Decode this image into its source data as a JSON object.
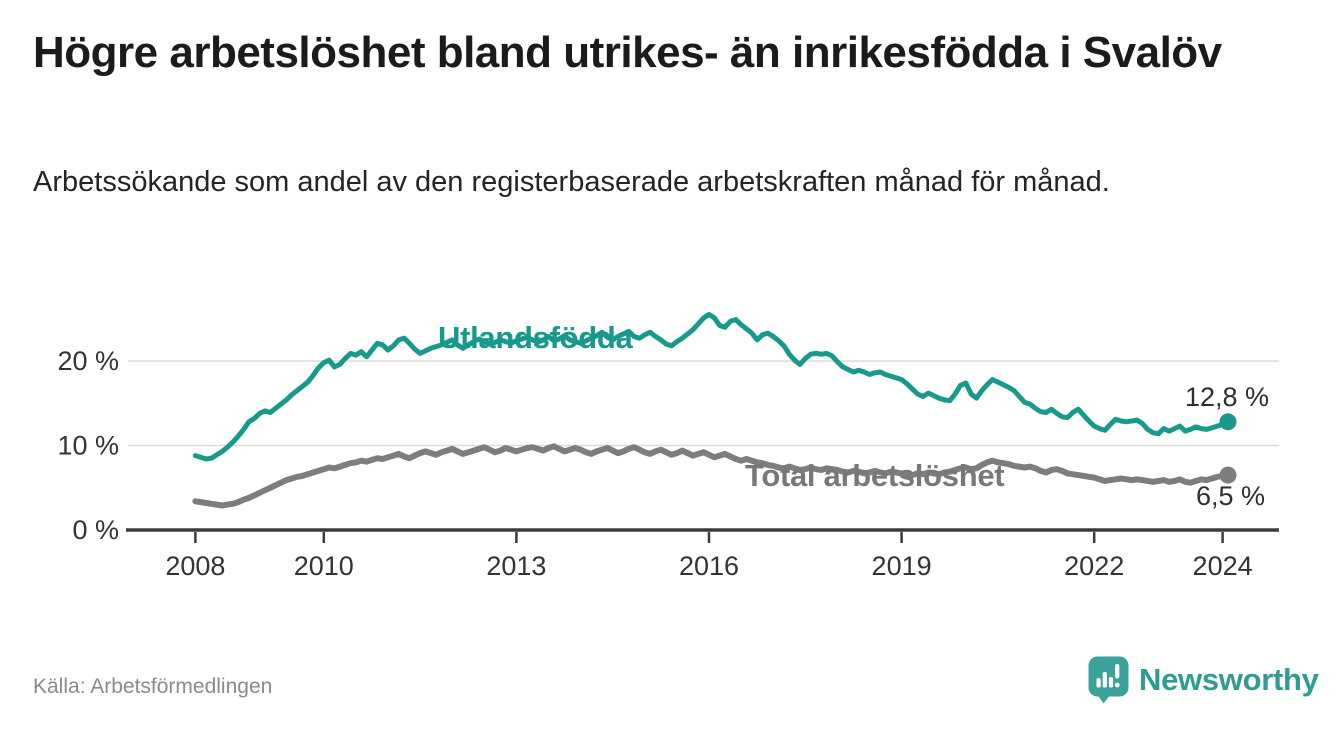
{
  "header": {
    "title": "Högre arbetslöshet bland utrikes- än inrikesfödda i Svalöv",
    "subtitle": "Arbetssökande som andel av den registerbaserade arbetskraften månad för månad."
  },
  "footer": {
    "source": "Källa: Arbetsförmedlingen",
    "brand_name": "Newsworthy",
    "logo_icon": "speech-bubble-bar-chart-icon"
  },
  "colors": {
    "accent_teal": "#17998C",
    "series_gray": "#7D7D7F",
    "title_text": "#1b1b1b",
    "axis_text": "#333333",
    "gridline": "#DCDCDC",
    "axis_line": "#3B3B3B",
    "source_text": "#8A8A8A",
    "logo_teal": "#3AA29A"
  },
  "chart_data": {
    "type": "line",
    "title": "Högre arbetslöshet bland utrikes- än inrikesfödda i Svalöv",
    "subtitle": "Arbetssökande som andel av den registerbaserade arbetskraften månad för månad.",
    "x_start": 2008,
    "x_end": 2024.08,
    "frequency": "monthly",
    "x_ticks": [
      2008,
      2010,
      2013,
      2016,
      2019,
      2022,
      2024
    ],
    "y_ticks": [
      {
        "value": 0,
        "label": "0 %"
      },
      {
        "value": 10,
        "label": "10 %"
      },
      {
        "value": 20,
        "label": "20 %"
      }
    ],
    "y_gridlines": [
      10,
      20
    ],
    "ylim": [
      0,
      27
    ],
    "grid": true,
    "legend_position": "inline-labels",
    "series": [
      {
        "name": "Utlandsfödda",
        "color": "#17998C",
        "stroke_width": 5,
        "end_label": "12,8 %",
        "last_value": 12.8,
        "values": [
          8.8,
          8.6,
          8.4,
          8.5,
          8.9,
          9.3,
          9.8,
          10.4,
          11.1,
          11.9,
          12.8,
          13.2,
          13.8,
          14.1,
          13.9,
          14.4,
          14.9,
          15.4,
          16.0,
          16.5,
          17.0,
          17.5,
          18.3,
          19.2,
          19.8,
          20.1,
          19.3,
          19.6,
          20.3,
          20.9,
          20.7,
          21.1,
          20.5,
          21.3,
          22.1,
          21.9,
          21.3,
          21.8,
          22.5,
          22.7,
          22.1,
          21.4,
          20.9,
          21.2,
          21.5,
          21.7,
          21.9,
          22.2,
          22.5,
          21.9,
          21.5,
          21.9,
          22.3,
          22.6,
          22.3,
          22.0,
          22.2,
          22.5,
          22.3,
          22.1,
          22.4,
          22.6,
          22.8,
          22.5,
          22.2,
          22.5,
          22.9,
          22.4,
          22.6,
          23.0,
          22.5,
          22.3,
          22.1,
          22.4,
          22.7,
          23.0,
          23.4,
          22.8,
          22.5,
          22.9,
          23.2,
          23.5,
          22.9,
          22.7,
          23.1,
          23.4,
          22.9,
          22.5,
          22.0,
          21.8,
          22.3,
          22.7,
          23.2,
          23.7,
          24.4,
          25.1,
          25.5,
          25.1,
          24.2,
          24.0,
          24.7,
          24.9,
          24.3,
          23.8,
          23.3,
          22.5,
          23.1,
          23.3,
          22.9,
          22.4,
          21.8,
          20.8,
          20.1,
          19.6,
          20.3,
          20.8,
          20.9,
          20.8,
          20.9,
          20.6,
          19.9,
          19.3,
          19.0,
          18.7,
          18.9,
          18.7,
          18.4,
          18.6,
          18.7,
          18.4,
          18.2,
          18.0,
          17.8,
          17.3,
          16.7,
          16.1,
          15.8,
          16.2,
          15.9,
          15.6,
          15.4,
          15.3,
          16.1,
          17.1,
          17.4,
          16.1,
          15.6,
          16.5,
          17.2,
          17.8,
          17.5,
          17.2,
          16.9,
          16.5,
          15.8,
          15.1,
          14.9,
          14.4,
          14.0,
          13.9,
          14.3,
          13.8,
          13.4,
          13.3,
          13.9,
          14.3,
          13.6,
          12.9,
          12.3,
          12.0,
          11.8,
          12.5,
          13.1,
          12.9,
          12.8,
          12.9,
          13.0,
          12.6,
          11.9,
          11.5,
          11.4,
          12.0,
          11.7,
          12.0,
          12.3,
          11.7,
          11.9,
          12.2,
          12.0,
          11.9,
          12.1,
          12.3,
          12.5,
          12.8
        ]
      },
      {
        "name": "Total arbetslöshet",
        "color": "#7D7D7F",
        "stroke_width": 6,
        "end_label": "6,5 %",
        "last_value": 6.5,
        "values": [
          3.4,
          3.3,
          3.2,
          3.1,
          3.0,
          2.9,
          3.0,
          3.1,
          3.3,
          3.6,
          3.8,
          4.1,
          4.4,
          4.7,
          5.0,
          5.3,
          5.6,
          5.9,
          6.1,
          6.3,
          6.4,
          6.6,
          6.8,
          7.0,
          7.2,
          7.4,
          7.3,
          7.5,
          7.7,
          7.9,
          8.0,
          8.2,
          8.1,
          8.3,
          8.5,
          8.4,
          8.6,
          8.8,
          9.0,
          8.7,
          8.5,
          8.8,
          9.1,
          9.3,
          9.1,
          8.9,
          9.2,
          9.4,
          9.6,
          9.3,
          9.0,
          9.2,
          9.4,
          9.6,
          9.8,
          9.5,
          9.2,
          9.4,
          9.7,
          9.5,
          9.3,
          9.5,
          9.7,
          9.8,
          9.6,
          9.4,
          9.7,
          9.9,
          9.6,
          9.3,
          9.5,
          9.7,
          9.5,
          9.2,
          9.0,
          9.3,
          9.5,
          9.7,
          9.4,
          9.1,
          9.3,
          9.6,
          9.8,
          9.5,
          9.2,
          9.0,
          9.3,
          9.5,
          9.2,
          8.9,
          9.1,
          9.4,
          9.1,
          8.8,
          9.0,
          9.2,
          8.9,
          8.6,
          8.8,
          9.0,
          8.7,
          8.4,
          8.2,
          8.4,
          8.2,
          8.0,
          7.9,
          7.7,
          7.6,
          7.4,
          7.3,
          7.5,
          7.3,
          7.1,
          7.2,
          7.4,
          7.2,
          7.1,
          7.3,
          7.2,
          7.1,
          6.9,
          6.8,
          7.0,
          6.9,
          6.7,
          6.8,
          7.0,
          6.8,
          6.7,
          6.9,
          6.8,
          6.7,
          6.6,
          6.5,
          6.7,
          6.6,
          6.8,
          6.7,
          6.6,
          6.8,
          6.9,
          7.1,
          7.3,
          7.4,
          7.2,
          7.3,
          7.7,
          8.0,
          8.2,
          8.0,
          7.9,
          7.8,
          7.6,
          7.5,
          7.4,
          7.5,
          7.3,
          7.0,
          6.8,
          7.1,
          7.2,
          7.0,
          6.7,
          6.6,
          6.5,
          6.4,
          6.3,
          6.2,
          6.0,
          5.8,
          5.9,
          6.0,
          6.1,
          6.0,
          5.9,
          6.0,
          5.9,
          5.8,
          5.7,
          5.8,
          5.9,
          5.7,
          5.8,
          6.0,
          5.7,
          5.6,
          5.8,
          6.0,
          5.9,
          6.1,
          6.3,
          6.4,
          6.5
        ]
      }
    ]
  }
}
